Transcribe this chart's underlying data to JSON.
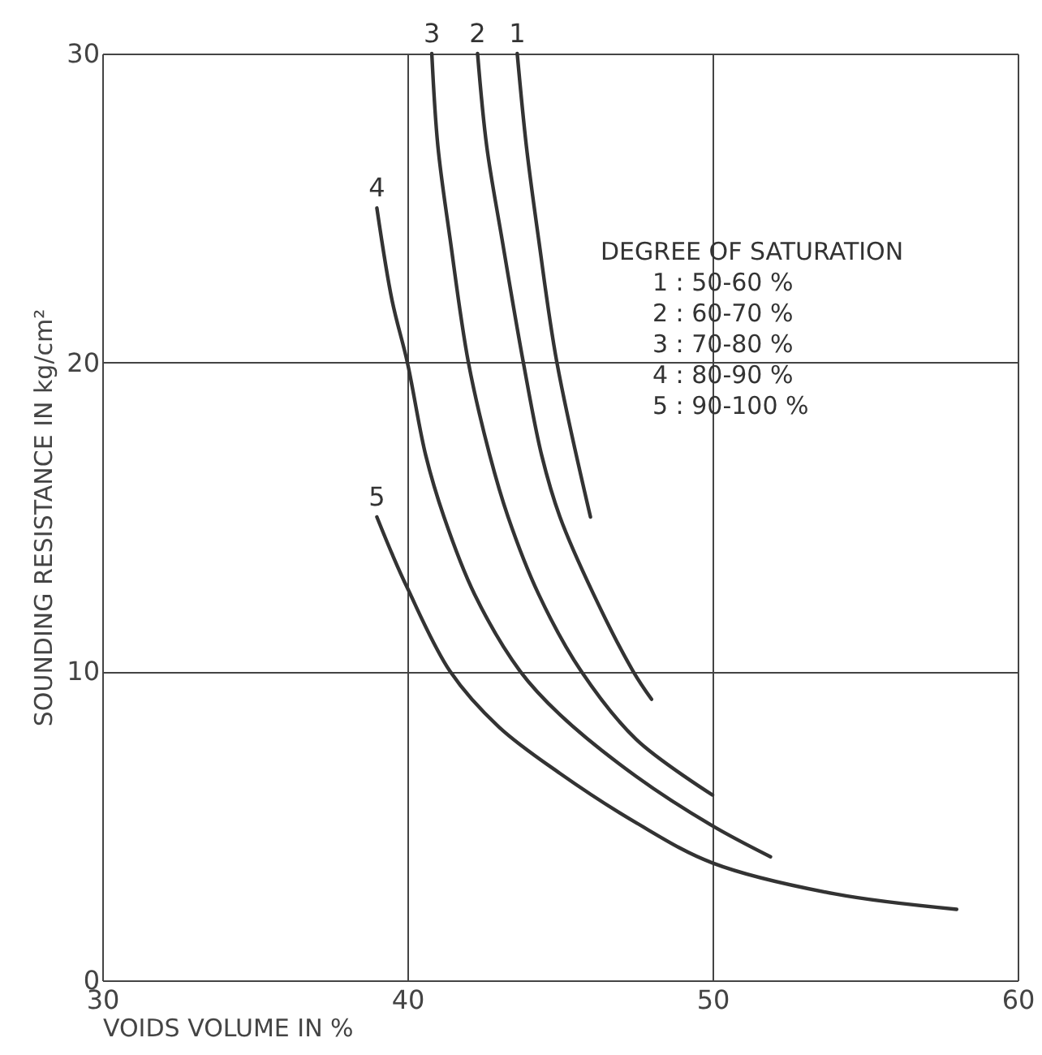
{
  "chart_data": {
    "type": "line",
    "xlabel": "VOIDS VOLUME IN %",
    "ylabel": "SOUNDING RESISTANCE IN kg/cm²",
    "legend_title": "DEGREE OF SATURATION",
    "annotations": [
      "1 : 50-60 %",
      "2 : 60-70 %",
      "3 : 70-80 %",
      "4 : 80-90 %",
      "5 : 90-100 %"
    ],
    "xlim": [
      30,
      60
    ],
    "ylim": [
      0,
      30
    ],
    "xticks": [
      30,
      40,
      50,
      60
    ],
    "yticks": [
      0,
      10,
      20,
      30
    ],
    "grid": true,
    "line_style": "solid",
    "series": [
      {
        "name": "1",
        "color": "#333333",
        "x": [
          43.6,
          43.9,
          44.3,
          44.9,
          46.0
        ],
        "values": [
          30,
          27,
          24,
          20,
          15
        ]
      },
      {
        "name": "2",
        "color": "#333333",
        "x": [
          42.3,
          42.6,
          43.1,
          43.8,
          44.4,
          45.0,
          46.1,
          47.4,
          48.0
        ],
        "values": [
          30,
          27,
          24,
          20,
          17,
          15,
          12.5,
          10,
          9.1
        ]
      },
      {
        "name": "3",
        "color": "#333333",
        "x": [
          40.8,
          41.0,
          41.4,
          42.0,
          42.7,
          43.3,
          44.3,
          45.7,
          47.5,
          50.0
        ],
        "values": [
          30,
          27,
          24,
          20,
          17,
          15,
          12.5,
          10,
          7.8,
          6.0
        ]
      },
      {
        "name": "4",
        "color": "#333333",
        "x": [
          39.0,
          39.5,
          40.0,
          40.6,
          41.2,
          42.2,
          43.7,
          45.0,
          47.5,
          50.0,
          51.9
        ],
        "values": [
          25,
          22,
          20,
          17,
          15,
          12.5,
          10,
          8.6,
          6.6,
          5.0,
          4.0
        ]
      },
      {
        "name": "5",
        "color": "#333333",
        "x": [
          39.0,
          39.5,
          40.0,
          41.4,
          43.0,
          45.0,
          47.5,
          50.0,
          54.0,
          58.0
        ],
        "values": [
          15,
          13.8,
          12.7,
          10,
          8.2,
          6.7,
          5.1,
          3.8,
          2.8,
          2.3
        ]
      }
    ]
  }
}
